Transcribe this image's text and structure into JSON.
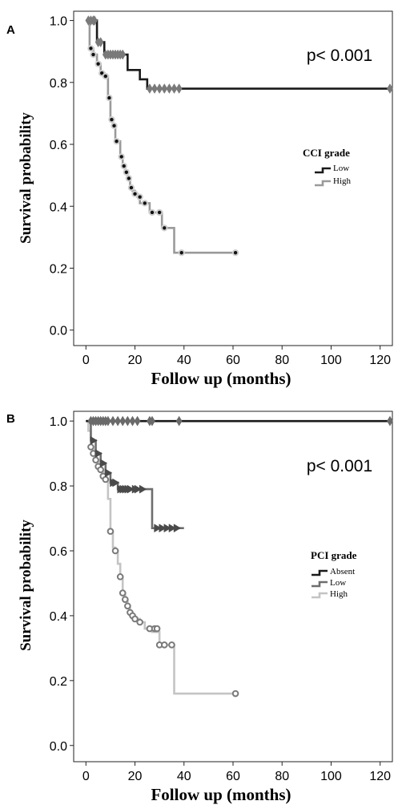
{
  "chart_data": [
    {
      "panel_label": "A",
      "type": "line",
      "subtype": "kaplan-meier",
      "xlabel": "Follow up (months)",
      "ylabel": "Survival probability",
      "xlim": [
        -5,
        125
      ],
      "ylim": [
        -0.05,
        1.03
      ],
      "xticks": [
        "0",
        "20",
        "40",
        "60",
        "80",
        "100",
        "120"
      ],
      "yticks": [
        "0.0",
        "0.2",
        "0.4",
        "0.6",
        "0.8",
        "1.0"
      ],
      "annotation": "p< 0.001",
      "legend": {
        "title": "CCI grade",
        "position": "right",
        "entries": [
          "Low",
          "High"
        ]
      },
      "grid": false,
      "series": [
        {
          "name": "Low",
          "color": "#1a1a1a",
          "censor_marker": "diamond",
          "censor_color": "#7a7a7a",
          "steps": [
            [
              0,
              1.0
            ],
            [
              4.5,
              0.93
            ],
            [
              7.5,
              0.89
            ],
            [
              17,
              0.84
            ],
            [
              22,
              0.81
            ],
            [
              25,
              0.78
            ],
            [
              124,
              0.78
            ]
          ],
          "censored": [
            [
              1,
              1.0
            ],
            [
              2,
              1.0
            ],
            [
              3,
              1.0
            ],
            [
              3.5,
              1.0
            ],
            [
              5,
              0.93
            ],
            [
              6,
              0.93
            ],
            [
              8,
              0.89
            ],
            [
              9,
              0.89
            ],
            [
              10,
              0.89
            ],
            [
              11,
              0.89
            ],
            [
              12,
              0.89
            ],
            [
              13,
              0.89
            ],
            [
              14,
              0.89
            ],
            [
              15,
              0.89
            ],
            [
              26,
              0.78
            ],
            [
              28,
              0.78
            ],
            [
              30,
              0.78
            ],
            [
              32,
              0.78
            ],
            [
              34,
              0.78
            ],
            [
              36,
              0.78
            ],
            [
              38,
              0.78
            ],
            [
              124,
              0.78
            ]
          ]
        },
        {
          "name": "High",
          "color": "#9a9a9a",
          "censor_marker": "dot",
          "steps": [
            [
              0,
              1.0
            ],
            [
              1.5,
              0.91
            ],
            [
              3,
              0.89
            ],
            [
              4.5,
              0.86
            ],
            [
              6,
              0.83
            ],
            [
              7.5,
              0.82
            ],
            [
              9,
              0.75
            ],
            [
              10,
              0.68
            ],
            [
              11,
              0.66
            ],
            [
              12,
              0.61
            ],
            [
              14,
              0.56
            ],
            [
              15,
              0.53
            ],
            [
              16,
              0.51
            ],
            [
              17,
              0.49
            ],
            [
              18,
              0.46
            ],
            [
              19,
              0.45
            ],
            [
              20,
              0.44
            ],
            [
              21,
              0.43
            ],
            [
              22,
              0.41
            ],
            [
              24,
              0.41
            ],
            [
              26,
              0.38
            ],
            [
              28,
              0.38
            ],
            [
              31,
              0.33
            ],
            [
              33,
              0.33
            ],
            [
              36,
              0.25
            ],
            [
              61,
              0.25
            ]
          ],
          "censored": [
            [
              2,
              0.91
            ],
            [
              3,
              0.89
            ],
            [
              5,
              0.86
            ],
            [
              6.5,
              0.83
            ],
            [
              8,
              0.82
            ],
            [
              9.5,
              0.75
            ],
            [
              10.5,
              0.68
            ],
            [
              11.5,
              0.66
            ],
            [
              12.5,
              0.61
            ],
            [
              14.5,
              0.56
            ],
            [
              15.5,
              0.53
            ],
            [
              16.5,
              0.51
            ],
            [
              17.5,
              0.49
            ],
            [
              18.5,
              0.46
            ],
            [
              20,
              0.44
            ],
            [
              22,
              0.43
            ],
            [
              24,
              0.41
            ],
            [
              27,
              0.38
            ],
            [
              30,
              0.38
            ],
            [
              32,
              0.33
            ],
            [
              39,
              0.25
            ],
            [
              61,
              0.25
            ]
          ]
        }
      ]
    },
    {
      "panel_label": "B",
      "type": "line",
      "subtype": "kaplan-meier",
      "xlabel": "Follow up (months)",
      "ylabel": "Survival probability",
      "xlim": [
        -5,
        125
      ],
      "ylim": [
        -0.05,
        1.03
      ],
      "xticks": [
        "0",
        "20",
        "40",
        "60",
        "80",
        "100",
        "120"
      ],
      "yticks": [
        "0.0",
        "0.2",
        "0.4",
        "0.6",
        "0.8",
        "1.0"
      ],
      "annotation": "p< 0.001",
      "legend": {
        "title": "PCI grade",
        "position": "right",
        "entries": [
          "Absent",
          "Low",
          "High"
        ]
      },
      "grid": false,
      "series": [
        {
          "name": "Absent",
          "color": "#1a1a1a",
          "censor_marker": "diamond",
          "censor_color": "#6a6a6a",
          "steps": [
            [
              0,
              1.0
            ],
            [
              124,
              1.0
            ]
          ],
          "censored": [
            [
              2,
              1.0
            ],
            [
              3,
              1.0
            ],
            [
              4,
              1.0
            ],
            [
              5,
              1.0
            ],
            [
              6,
              1.0
            ],
            [
              7,
              1.0
            ],
            [
              8,
              1.0
            ],
            [
              9,
              1.0
            ],
            [
              11,
              1.0
            ],
            [
              13,
              1.0
            ],
            [
              15,
              1.0
            ],
            [
              17,
              1.0
            ],
            [
              19,
              1.0
            ],
            [
              21,
              1.0
            ],
            [
              26,
              1.0
            ],
            [
              27,
              1.0
            ],
            [
              38,
              1.0
            ],
            [
              124,
              1.0
            ]
          ]
        },
        {
          "name": "Low",
          "color": "#6e6e6e",
          "censor_marker": "triangle",
          "censor_color": "#4a4a4a",
          "steps": [
            [
              0,
              1.0
            ],
            [
              2,
              0.94
            ],
            [
              4,
              0.9
            ],
            [
              6,
              0.87
            ],
            [
              8,
              0.84
            ],
            [
              10,
              0.81
            ],
            [
              13,
              0.79
            ],
            [
              27,
              0.67
            ],
            [
              40,
              0.67
            ]
          ],
          "censored": [
            [
              3,
              0.94
            ],
            [
              5,
              0.9
            ],
            [
              7,
              0.87
            ],
            [
              9,
              0.84
            ],
            [
              11,
              0.81
            ],
            [
              12,
              0.81
            ],
            [
              14,
              0.79
            ],
            [
              15,
              0.79
            ],
            [
              16,
              0.79
            ],
            [
              17,
              0.79
            ],
            [
              18,
              0.79
            ],
            [
              20,
              0.79
            ],
            [
              21,
              0.79
            ],
            [
              23,
              0.79
            ],
            [
              29,
              0.67
            ],
            [
              31,
              0.67
            ],
            [
              33,
              0.67
            ],
            [
              35,
              0.67
            ],
            [
              37,
              0.67
            ]
          ]
        },
        {
          "name": "High",
          "color": "#c4c4c4",
          "censor_marker": "dot",
          "censor_color": "#7a7a7a",
          "steps": [
            [
              0,
              1.0
            ],
            [
              1,
              0.97
            ],
            [
              2,
              0.92
            ],
            [
              3,
              0.9
            ],
            [
              4,
              0.88
            ],
            [
              5,
              0.86
            ],
            [
              6,
              0.85
            ],
            [
              7,
              0.83
            ],
            [
              8,
              0.82
            ],
            [
              9,
              0.76
            ],
            [
              10,
              0.66
            ],
            [
              11,
              0.61
            ],
            [
              12,
              0.6
            ],
            [
              13,
              0.56
            ],
            [
              14,
              0.52
            ],
            [
              15,
              0.47
            ],
            [
              16,
              0.45
            ],
            [
              17,
              0.43
            ],
            [
              18,
              0.41
            ],
            [
              19,
              0.4
            ],
            [
              20,
              0.39
            ],
            [
              22,
              0.38
            ],
            [
              24,
              0.36
            ],
            [
              27,
              0.35
            ],
            [
              30,
              0.31
            ],
            [
              36,
              0.16
            ],
            [
              61,
              0.16
            ]
          ],
          "censored": [
            [
              2,
              0.92
            ],
            [
              3,
              0.9
            ],
            [
              4,
              0.88
            ],
            [
              5,
              0.86
            ],
            [
              6,
              0.85
            ],
            [
              7,
              0.83
            ],
            [
              8,
              0.82
            ],
            [
              10,
              0.66
            ],
            [
              12,
              0.6
            ],
            [
              14,
              0.52
            ],
            [
              15,
              0.47
            ],
            [
              16,
              0.45
            ],
            [
              17,
              0.43
            ],
            [
              18,
              0.41
            ],
            [
              19,
              0.4
            ],
            [
              20,
              0.39
            ],
            [
              22,
              0.38
            ],
            [
              26,
              0.36
            ],
            [
              28,
              0.36
            ],
            [
              29,
              0.36
            ],
            [
              30,
              0.31
            ],
            [
              32,
              0.31
            ],
            [
              35,
              0.31
            ],
            [
              61,
              0.16
            ]
          ]
        }
      ]
    }
  ]
}
